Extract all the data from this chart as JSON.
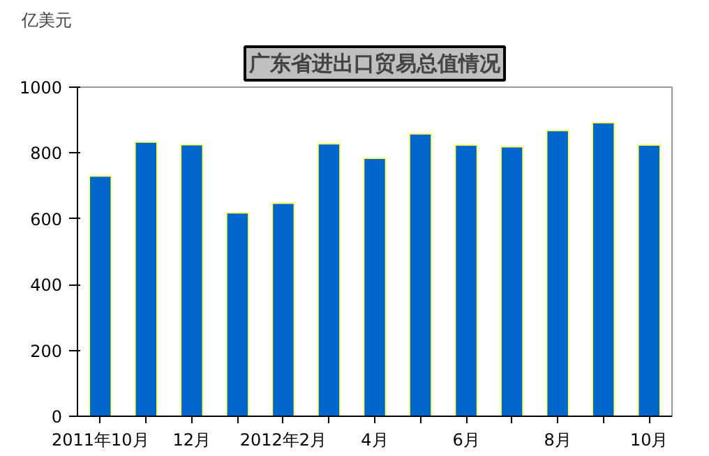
{
  "chart_data": {
    "type": "bar",
    "title": "广东省进出口贸易总值情况",
    "ylabel": "亿美元",
    "categories": [
      "2011年10月",
      null,
      "12月",
      null,
      "2012年2月",
      null,
      "4月",
      null,
      "6月",
      null,
      "8月",
      null,
      "10月"
    ],
    "values": [
      730,
      833,
      825,
      618,
      647,
      828,
      784,
      858,
      824,
      819,
      868,
      892,
      824
    ],
    "color": "#0066cc",
    "ylim": [
      0,
      1000
    ],
    "yticks": [
      0,
      200,
      400,
      600,
      800,
      1000
    ],
    "grid": false
  }
}
